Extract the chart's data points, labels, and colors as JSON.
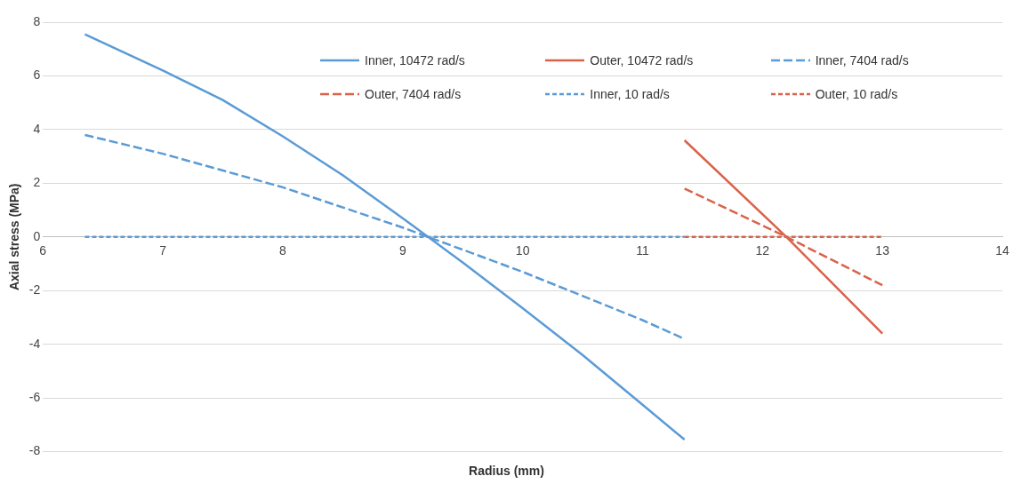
{
  "chart_data": {
    "type": "line",
    "xlabel": "Radius (mm)",
    "ylabel": "Axial stress (MPa)",
    "xlim": [
      6,
      14
    ],
    "xticks": [
      6,
      7,
      8,
      9,
      10,
      11,
      12,
      13,
      14
    ],
    "ylim": [
      -8,
      8
    ],
    "yticks": [
      -8,
      -6,
      -4,
      -2,
      0,
      2,
      4,
      6,
      8
    ],
    "grid": "y",
    "legend": "top right",
    "marker": "none",
    "series": [
      {
        "name": "Inner, 10472 rad/s",
        "color": "#5b9bd5",
        "line_style": "solid",
        "x": [
          6.35,
          7,
          7.5,
          8,
          8.5,
          9,
          9.5,
          10,
          10.5,
          11,
          11.35
        ],
        "values": [
          7.55,
          6.2,
          5.1,
          3.75,
          2.3,
          0.7,
          -0.95,
          -2.65,
          -4.4,
          -6.25,
          -7.55
        ]
      },
      {
        "name": "Outer, 10472 rad/s",
        "color": "#d9634a",
        "line_style": "solid",
        "x": [
          11.35,
          12.2,
          13
        ],
        "values": [
          3.6,
          0,
          -3.6
        ]
      },
      {
        "name": "Inner, 7404 rad/s",
        "color": "#5b9bd5",
        "line_style": "dashed",
        "x": [
          6.35,
          7,
          8,
          9,
          10,
          11,
          11.35
        ],
        "values": [
          3.8,
          3.1,
          1.85,
          0.35,
          -1.3,
          -3.1,
          -3.8
        ]
      },
      {
        "name": "Outer, 7404 rad/s",
        "color": "#d9634a",
        "line_style": "dashed",
        "x": [
          11.35,
          12.2,
          13
        ],
        "values": [
          1.8,
          0,
          -1.8
        ]
      },
      {
        "name": "Inner, 10 rad/s",
        "color": "#5b9bd5",
        "line_style": "dotted",
        "x": [
          6.35,
          11.35
        ],
        "values": [
          0,
          0
        ]
      },
      {
        "name": "Outer, 10 rad/s",
        "color": "#d9634a",
        "line_style": "dotted",
        "x": [
          11.35,
          13
        ],
        "values": [
          0,
          0
        ]
      }
    ]
  }
}
